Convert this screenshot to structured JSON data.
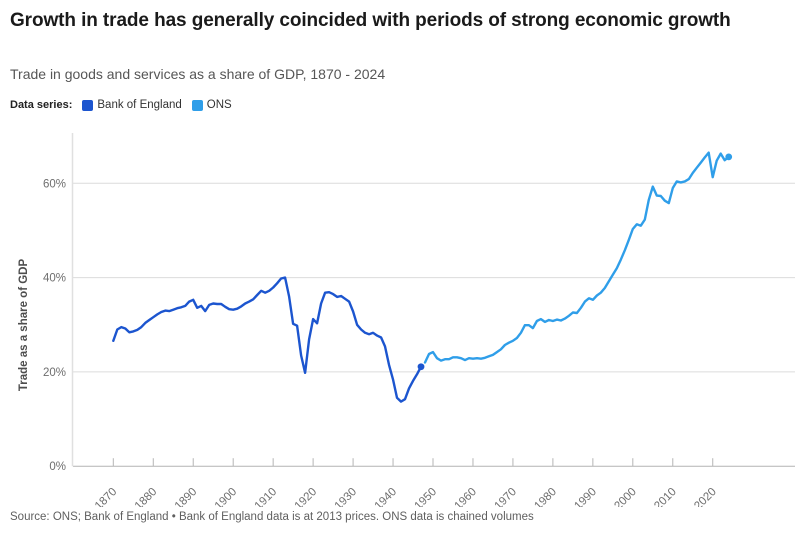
{
  "header": {
    "title": "Growth in trade has generally coincided with periods of strong economic growth",
    "subtitle": "Trade in goods and services as a share of GDP, 1870 - 2024"
  },
  "legend": {
    "label": "Data series:",
    "items": [
      {
        "name": "Bank of England",
        "color": "#1c55cf"
      },
      {
        "name": "ONS",
        "color": "#2f9ee9"
      }
    ]
  },
  "footer": {
    "source": "Source: ONS; Bank of England • Bank of England data is at 2013 prices. ONS data is chained volumes"
  },
  "chart_data": {
    "type": "line",
    "title": "Growth in trade has generally coincided with periods of strong economic growth",
    "subtitle": "Trade in goods and services as a share of GDP, 1870 - 2024",
    "xlabel": "",
    "ylabel": "Trade as a share of GDP",
    "xlim": [
      1860,
      2040
    ],
    "ylim": [
      0,
      72
    ],
    "grid": "horizontal",
    "legend_position": "top",
    "y_tick_values": [
      0,
      20,
      40,
      60
    ],
    "y_tick_labels": [
      "0%",
      "20%",
      "40%",
      "60%"
    ],
    "x_ticks": [
      1870,
      1880,
      1890,
      1900,
      1910,
      1920,
      1930,
      1940,
      1950,
      1960,
      1970,
      1980,
      1990,
      2000,
      2010,
      2020
    ],
    "unit": "% of GDP",
    "series": [
      {
        "name": "Bank of England",
        "color": "#1c55cf",
        "start_year": 1870,
        "end_year": 1947,
        "end_dot": true,
        "values": [
          26.6,
          29.0,
          29.5,
          29.2,
          28.4,
          28.6,
          28.9,
          29.5,
          30.4,
          31.0,
          31.6,
          32.2,
          32.7,
          33.0,
          32.9,
          33.2,
          33.5,
          33.7,
          34.0,
          34.9,
          35.3,
          33.6,
          34.0,
          32.9,
          34.2,
          34.5,
          34.4,
          34.4,
          33.8,
          33.3,
          33.2,
          33.4,
          33.9,
          34.5,
          34.9,
          35.4,
          36.3,
          37.2,
          36.8,
          37.2,
          37.9,
          38.8,
          39.8,
          40.0,
          36.0,
          30.2,
          29.8,
          23.5,
          19.8,
          26.9,
          31.2,
          30.3,
          34.5,
          36.8,
          36.9,
          36.5,
          35.9,
          36.1,
          35.5,
          34.9,
          32.8,
          30.0,
          29.0,
          28.3,
          28.0,
          28.3,
          27.7,
          27.3,
          25.4,
          21.5,
          18.4,
          14.5,
          13.7,
          14.2,
          16.5,
          18.1,
          19.5,
          21.1
        ]
      },
      {
        "name": "ONS",
        "color": "#2f9ee9",
        "start_year": 1948,
        "end_year": 2024,
        "end_dot": true,
        "values": [
          22.0,
          23.8,
          24.2,
          22.9,
          22.4,
          22.7,
          22.7,
          23.1,
          23.1,
          22.9,
          22.5,
          22.9,
          22.8,
          22.9,
          22.8,
          23.0,
          23.3,
          23.6,
          24.2,
          24.8,
          25.7,
          26.2,
          26.6,
          27.2,
          28.3,
          29.9,
          29.9,
          29.3,
          30.8,
          31.2,
          30.6,
          31.0,
          30.8,
          31.1,
          30.9,
          31.3,
          31.9,
          32.6,
          32.5,
          33.6,
          34.9,
          35.6,
          35.3,
          36.2,
          36.8,
          37.8,
          39.2,
          40.6,
          42.0,
          43.8,
          45.8,
          48.0,
          50.3,
          51.3,
          51.0,
          52.3,
          56.5,
          59.3,
          57.4,
          57.3,
          56.3,
          55.8,
          59.0,
          60.4,
          60.2,
          60.4,
          60.9,
          62.2,
          63.3,
          64.4,
          65.5,
          66.5,
          61.3,
          64.8,
          66.3,
          64.9,
          65.6
        ]
      }
    ]
  }
}
